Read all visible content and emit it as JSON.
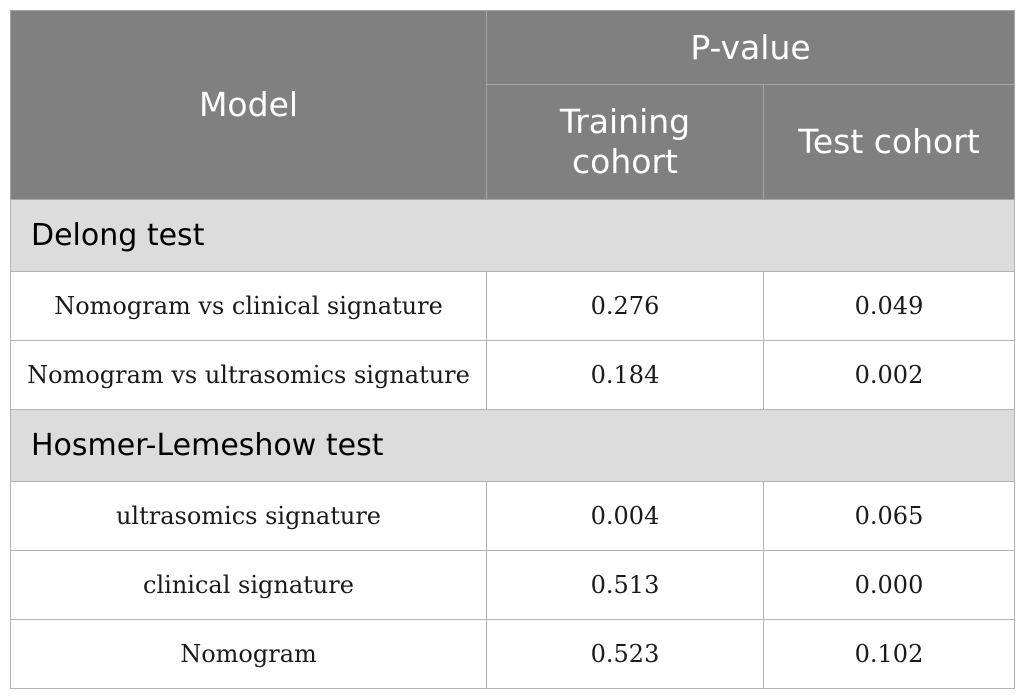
{
  "header": {
    "model": "Model",
    "pvalue": "P-value",
    "training": "Training cohort",
    "test": "Test cohort"
  },
  "sections": [
    {
      "title": "Delong test",
      "rows": [
        {
          "model": "Nomogram vs clinical signature",
          "training": "0.276",
          "test": "0.049"
        },
        {
          "model": "Nomogram vs ultrasomics signature",
          "training": "0.184",
          "test": "0.002"
        }
      ]
    },
    {
      "title": "Hosmer-Lemeshow test",
      "rows": [
        {
          "model": "ultrasomics signature",
          "training": "0.004",
          "test": "0.065"
        },
        {
          "model": "clinical signature",
          "training": "0.513",
          "test": "0.000"
        },
        {
          "model": "Nomogram",
          "training": "0.523",
          "test": "0.102"
        }
      ]
    }
  ]
}
